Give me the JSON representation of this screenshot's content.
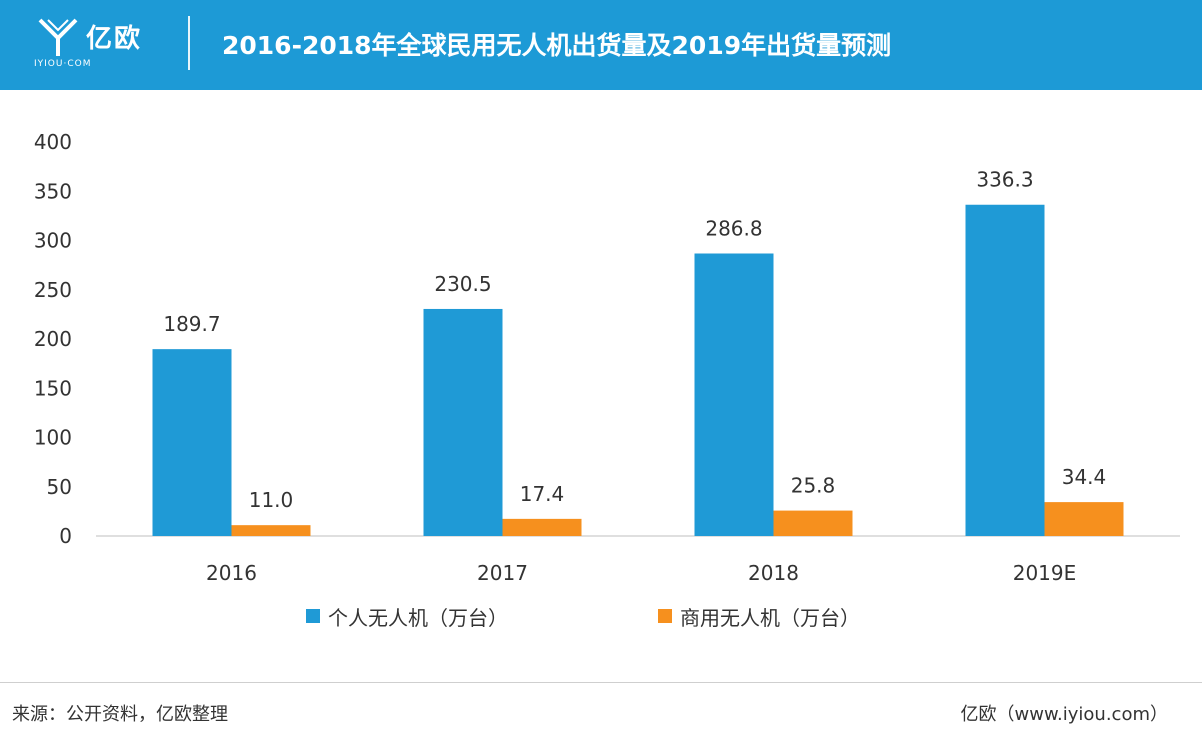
{
  "header": {
    "logo_text": "亿欧",
    "logo_sub": "IYIOU·COM",
    "title": "2016-2018年全球民用无人机出货量及2019年出货量预测"
  },
  "colors": {
    "header_bg": "#1d9ad6",
    "personal": "#1f9ad6",
    "commercial": "#f6901e"
  },
  "chart_data": {
    "type": "bar",
    "categories": [
      "2016",
      "2017",
      "2018",
      "2019E"
    ],
    "series": [
      {
        "name": "个人无人机（万台）",
        "values": [
          189.7,
          230.5,
          286.8,
          336.3
        ],
        "labels": [
          "189.7",
          "230.5",
          "286.8",
          "336.3"
        ]
      },
      {
        "name": "商用无人机（万台）",
        "values": [
          11.0,
          17.4,
          25.8,
          34.4
        ],
        "labels": [
          "11.0",
          "17.4",
          "25.8",
          "34.4"
        ]
      }
    ],
    "yticks": [
      0,
      50,
      100,
      150,
      200,
      250,
      300,
      350,
      400
    ],
    "ylim": [
      0,
      400
    ],
    "grid": false,
    "legend_position": "bottom"
  },
  "footer": {
    "source": "来源：公开资料，亿欧整理",
    "site": "亿欧（www.iyiou.com）"
  }
}
